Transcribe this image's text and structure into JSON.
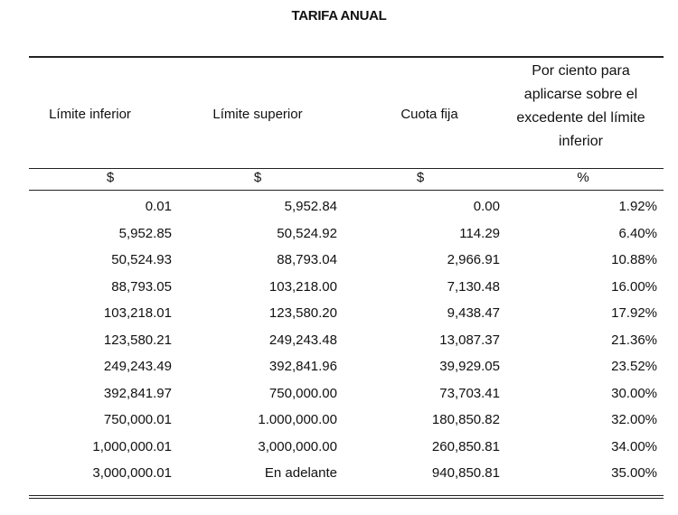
{
  "title": "TARIFA ANUAL",
  "headers": [
    "Límite inferior",
    "Límite superior",
    "Cuota fija",
    "Por ciento para aplicarse sobre el excedente del límite inferior"
  ],
  "units": [
    "$",
    "$",
    "$",
    "%"
  ],
  "rows": [
    [
      "0.01",
      "5,952.84",
      "0.00",
      "1.92%"
    ],
    [
      "5,952.85",
      "50,524.92",
      "114.29",
      "6.40%"
    ],
    [
      "50,524.93",
      "88,793.04",
      "2,966.91",
      "10.88%"
    ],
    [
      "88,793.05",
      "103,218.00",
      "7,130.48",
      "16.00%"
    ],
    [
      "103,218.01",
      "123,580.20",
      "9,438.47",
      "17.92%"
    ],
    [
      "123,580.21",
      "249,243.48",
      "13,087.37",
      "21.36%"
    ],
    [
      "249,243.49",
      "392,841.96",
      "39,929.05",
      "23.52%"
    ],
    [
      "392,841.97",
      "750,000.00",
      "73,703.41",
      "30.00%"
    ],
    [
      "750,000.01",
      "1.000,000.00",
      "180,850.82",
      "32.00%"
    ],
    [
      "1,000,000.01",
      "3,000,000.00",
      "260,850.81",
      "34.00%"
    ],
    [
      "3,000,000.01",
      "En adelante",
      "940,850.81",
      "35.00%"
    ]
  ]
}
